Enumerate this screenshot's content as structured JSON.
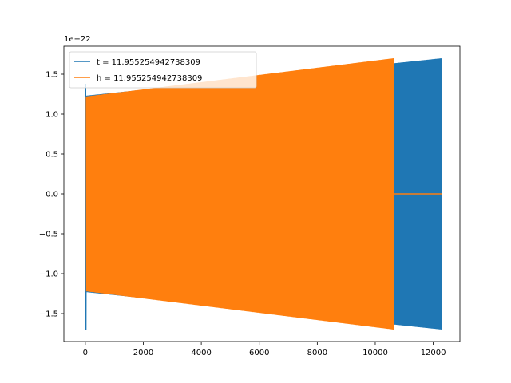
{
  "chart_data": {
    "type": "line",
    "title": "",
    "xlabel": "",
    "ylabel": "",
    "xlim": [
      -740,
      12920
    ],
    "ylim": [
      -1.85,
      1.85
    ],
    "y_offset_label": "1e−22",
    "x_ticks": [
      0,
      2000,
      4000,
      6000,
      8000,
      10000,
      12000
    ],
    "x_tick_labels": [
      "0",
      "2000",
      "4000",
      "6000",
      "8000",
      "10000",
      "12000"
    ],
    "y_ticks": [
      -1.5,
      -1.0,
      -0.5,
      0.0,
      0.5,
      1.0,
      1.5
    ],
    "y_tick_labels": [
      "−1.5",
      "−1.0",
      "−0.5",
      "0.0",
      "0.5",
      "1.0",
      "1.5"
    ],
    "grid": false,
    "legend_position": "top-left",
    "series": [
      {
        "name": "t = 11.955254942738309",
        "color": "#1f77b4",
        "x_start": 0,
        "x_end": 12300,
        "initial_spike": [
          1.38,
          -1.7
        ],
        "envelope_x": [
          0,
          12300
        ],
        "envelope_y": [
          1.23,
          1.7
        ]
      },
      {
        "name": "h = 11.955254942738309",
        "color": "#ff7f0e",
        "x_start": 0,
        "x_end": 10640,
        "envelope_x": [
          0,
          10640
        ],
        "envelope_y": [
          1.22,
          1.7
        ],
        "flat_x": [
          10640,
          12300
        ],
        "flat_y": 0.0
      }
    ]
  }
}
